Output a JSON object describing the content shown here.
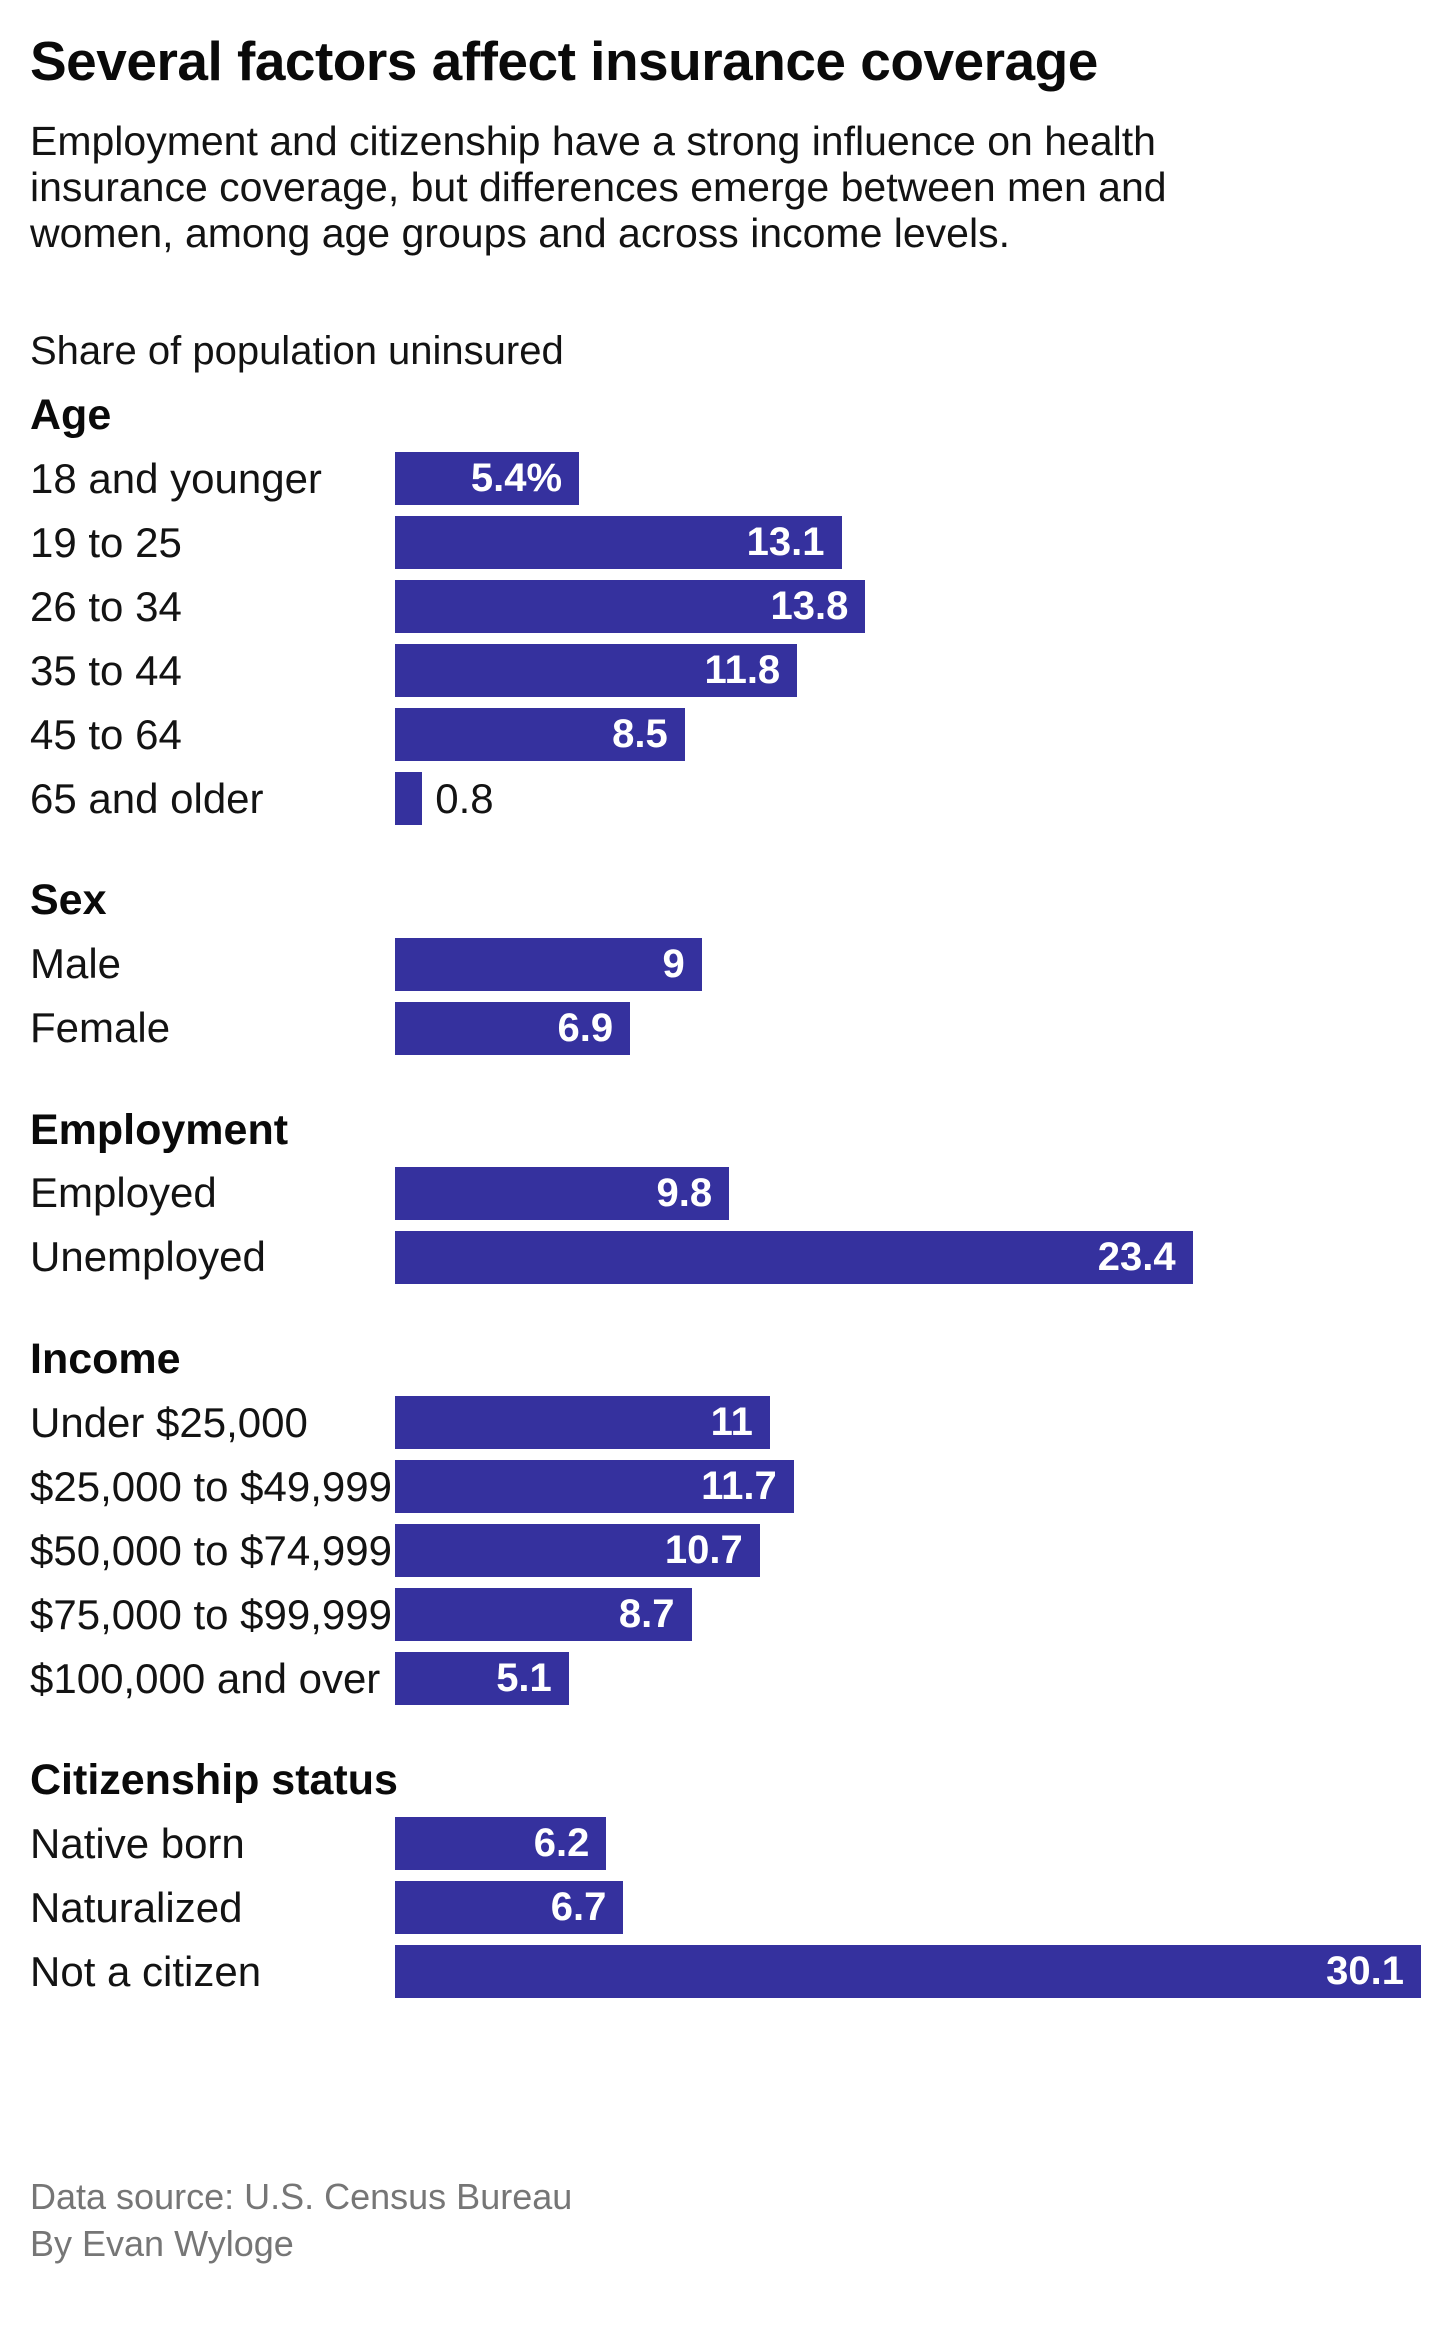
{
  "header": {
    "title": "Several factors affect insurance coverage",
    "subtitle_lines": [
      "Employment and citizenship have a strong influence on health",
      "insurance coverage, but differences emerge between men and",
      "women, among age groups and across income levels."
    ],
    "kicker": "Share of population uninsured"
  },
  "chart_data": {
    "type": "bar",
    "orientation": "horizontal",
    "title": "Several factors affect insurance coverage",
    "xlabel": "Share of population uninsured (%)",
    "xlim": [
      0,
      30.1
    ],
    "grid": false,
    "legend": false,
    "bar_color": "#35319e",
    "groups": [
      {
        "label": "Age",
        "rows": [
          {
            "label": "18 and younger",
            "value": 5.4,
            "display": "5.4%",
            "label_position": "inside"
          },
          {
            "label": "19 to 25",
            "value": 13.1,
            "display": "13.1",
            "label_position": "inside"
          },
          {
            "label": "26 to 34",
            "value": 13.8,
            "display": "13.8",
            "label_position": "inside"
          },
          {
            "label": "35 to 44",
            "value": 11.8,
            "display": "11.8",
            "label_position": "inside"
          },
          {
            "label": "45 to 64",
            "value": 8.5,
            "display": "8.5",
            "label_position": "inside"
          },
          {
            "label": "65 and older",
            "value": 0.8,
            "display": "0.8",
            "label_position": "outside"
          }
        ]
      },
      {
        "label": "Sex",
        "rows": [
          {
            "label": "Male",
            "value": 9,
            "display": "9",
            "label_position": "inside"
          },
          {
            "label": "Female",
            "value": 6.9,
            "display": "6.9",
            "label_position": "inside"
          }
        ]
      },
      {
        "label": "Employment",
        "rows": [
          {
            "label": "Employed",
            "value": 9.8,
            "display": "9.8",
            "label_position": "inside"
          },
          {
            "label": "Unemployed",
            "value": 23.4,
            "display": "23.4",
            "label_position": "inside"
          }
        ]
      },
      {
        "label": "Income",
        "rows": [
          {
            "label": "Under $25,000",
            "value": 11,
            "display": "11",
            "label_position": "inside"
          },
          {
            "label": "$25,000 to $49,999",
            "value": 11.7,
            "display": "11.7",
            "label_position": "inside"
          },
          {
            "label": "$50,000 to $74,999",
            "value": 10.7,
            "display": "10.7",
            "label_position": "inside"
          },
          {
            "label": "$75,000 to $99,999",
            "value": 8.7,
            "display": "8.7",
            "label_position": "inside"
          },
          {
            "label": "$100,000 and over",
            "value": 5.1,
            "display": "5.1",
            "label_position": "inside"
          }
        ]
      },
      {
        "label": "Citizenship status",
        "rows": [
          {
            "label": "Native born",
            "value": 6.2,
            "display": "6.2",
            "label_position": "inside"
          },
          {
            "label": "Naturalized",
            "value": 6.7,
            "display": "6.7",
            "label_position": "inside"
          },
          {
            "label": "Not a citizen",
            "value": 30.1,
            "display": "30.1",
            "label_position": "inside"
          }
        ]
      }
    ]
  },
  "footer": {
    "source": "Data source: U.S. Census Bureau",
    "byline": "By Evan Wyloge"
  }
}
